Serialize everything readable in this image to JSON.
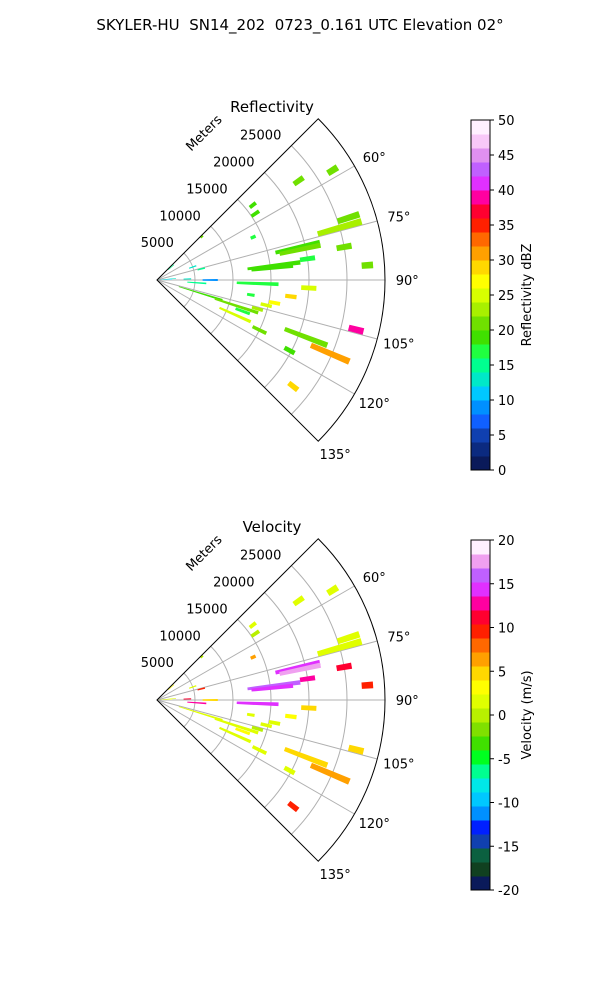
{
  "figure_title": "SKYLER-HU  SN14_202  0723_0.161 UTC Elevation 02°",
  "chart_data": [
    {
      "type": "ppi",
      "title": "Reflectivity",
      "range_label": "Meters",
      "range_ticks": [
        5000,
        10000,
        15000,
        20000,
        25000
      ],
      "range_max": 30000,
      "azimuth_ticks": [
        "60°",
        "75°",
        "90°",
        "105°",
        "120°",
        "135°"
      ],
      "azimuth_range": [
        45,
        135
      ],
      "grid": true,
      "colorbar": {
        "label": "Reflectivity dBZ",
        "min": 0,
        "max": 50,
        "ticks": [
          0,
          5,
          10,
          15,
          20,
          25,
          30,
          35,
          40,
          45,
          50
        ],
        "colors": [
          "#0a1a5a",
          "#0b2a80",
          "#1040b0",
          "#1060ff",
          "#0090ff",
          "#00c8ff",
          "#00e8c8",
          "#00ff90",
          "#20ff40",
          "#40e000",
          "#70e000",
          "#a8f000",
          "#d8ff00",
          "#ffff00",
          "#ffd800",
          "#ffa000",
          "#ff6800",
          "#ff2000",
          "#ff0030",
          "#ff00a0",
          "#e030ff",
          "#c060ff",
          "#e090f0",
          "#f8c8f8",
          "#fff0ff"
        ]
      },
      "echoes": [
        {
          "az": 46,
          "r": [
            8000,
            8400
          ],
          "v": 20
        },
        {
          "az": 48,
          "r": [
            2000,
            3000
          ],
          "v": 14
        },
        {
          "az": 52,
          "r": [
            15500,
            16500
          ],
          "v": 18
        },
        {
          "az": 55,
          "r": [
            22000,
            23500
          ],
          "v": 20
        },
        {
          "az": 56,
          "r": [
            15000,
            16200
          ],
          "v": 18
        },
        {
          "az": 58,
          "r": [
            26500,
            28000
          ],
          "v": 20
        },
        {
          "az": 66,
          "r": [
            13500,
            14200
          ],
          "v": 16
        },
        {
          "az": 70,
          "r": [
            4500,
            5500
          ],
          "v": 12
        },
        {
          "az": 72,
          "r": [
            25000,
            28000
          ],
          "v": 20
        },
        {
          "az": 74,
          "r": [
            22000,
            28000
          ],
          "v": 22
        },
        {
          "az": 76,
          "r": [
            5500,
            6500
          ],
          "v": 14
        },
        {
          "az": 77,
          "r": [
            16000,
            22000
          ],
          "v": 18
        },
        {
          "az": 78,
          "r": [
            16500,
            22000
          ],
          "v": 20
        },
        {
          "az": 80,
          "r": [
            24000,
            26000
          ],
          "v": 20
        },
        {
          "az": 82,
          "r": [
            19000,
            21000
          ],
          "v": 16
        },
        {
          "az": 83,
          "r": [
            12000,
            19000
          ],
          "v": 18
        },
        {
          "az": 84,
          "r": [
            12500,
            18000
          ],
          "v": 19
        },
        {
          "az": 85,
          "r": [
            0,
            2500
          ],
          "v": 12
        },
        {
          "az": 86,
          "r": [
            27000,
            28500
          ],
          "v": 20
        },
        {
          "az": 88,
          "r": [
            3500,
            4500
          ],
          "v": 13
        },
        {
          "az": 89,
          "r": [
            500,
            2000
          ],
          "v": 10
        },
        {
          "az": 90,
          "r": [
            6000,
            8000
          ],
          "v": 8
        },
        {
          "az": 92,
          "r": [
            10500,
            16000
          ],
          "v": 16
        },
        {
          "az": 93,
          "r": [
            19000,
            21000
          ],
          "v": 25
        },
        {
          "az": 94,
          "r": [
            4000,
            6500
          ],
          "v": 15
        },
        {
          "az": 97,
          "r": [
            17000,
            18500
          ],
          "v": 28
        },
        {
          "az": 99,
          "r": [
            12000,
            13000
          ],
          "v": 16
        },
        {
          "az": 101,
          "r": [
            15000,
            16500
          ],
          "v": 27
        },
        {
          "az": 103,
          "r": [
            14000,
            15500
          ],
          "v": 24
        },
        {
          "az": 104,
          "r": [
            26000,
            28000
          ],
          "v": 38
        },
        {
          "az": 106,
          "r": [
            13000,
            14500
          ],
          "v": 22
        },
        {
          "az": 107,
          "r": [
            3000,
            9000
          ],
          "v": 18
        },
        {
          "az": 108,
          "r": [
            8000,
            14000
          ],
          "v": 20
        },
        {
          "az": 110,
          "r": [
            11000,
            13000
          ],
          "v": 16
        },
        {
          "az": 111,
          "r": [
            18000,
            24000
          ],
          "v": 21
        },
        {
          "az": 113,
          "r": [
            22000,
            27500
          ],
          "v": 30
        },
        {
          "az": 114,
          "r": [
            9000,
            13500
          ],
          "v": 24
        },
        {
          "az": 116,
          "r": [
            14000,
            16000
          ],
          "v": 20
        },
        {
          "az": 118,
          "r": [
            19000,
            20500
          ],
          "v": 18
        },
        {
          "az": 128,
          "r": [
            22000,
            23500
          ],
          "v": 28
        }
      ]
    },
    {
      "type": "ppi",
      "title": "Velocity",
      "range_label": "Meters",
      "range_ticks": [
        5000,
        10000,
        15000,
        20000,
        25000
      ],
      "range_max": 30000,
      "azimuth_ticks": [
        "60°",
        "75°",
        "90°",
        "105°",
        "120°",
        "135°"
      ],
      "azimuth_range": [
        45,
        135
      ],
      "grid": true,
      "colorbar": {
        "label": "Velocity (m/s)",
        "min": -20,
        "max": 20,
        "ticks": [
          -20,
          -15,
          -10,
          -5,
          0,
          5,
          10,
          15,
          20
        ],
        "colors": [
          "#0a1a5a",
          "#104020",
          "#0b6040",
          "#1040b0",
          "#0020ff",
          "#0090ff",
          "#00c8ff",
          "#00e8e8",
          "#00ff90",
          "#00ff20",
          "#40e000",
          "#80e000",
          "#b8f000",
          "#e0ff00",
          "#ffff00",
          "#ffd800",
          "#ffa000",
          "#ff6800",
          "#ff2000",
          "#ff0030",
          "#ff00a0",
          "#e030ff",
          "#c060ff",
          "#f0a0f0",
          "#fff0ff"
        ]
      },
      "echoes": [
        {
          "az": 46,
          "r": [
            8000,
            8400
          ],
          "v": 0
        },
        {
          "az": 48,
          "r": [
            2000,
            3000
          ],
          "v": 3
        },
        {
          "az": 52,
          "r": [
            15500,
            16500
          ],
          "v": 2
        },
        {
          "az": 55,
          "r": [
            22000,
            23500
          ],
          "v": 1
        },
        {
          "az": 56,
          "r": [
            15000,
            16200
          ],
          "v": 0
        },
        {
          "az": 58,
          "r": [
            26500,
            28000
          ],
          "v": 1
        },
        {
          "az": 66,
          "r": [
            13500,
            14200
          ],
          "v": 7
        },
        {
          "az": 70,
          "r": [
            4500,
            5500
          ],
          "v": 2
        },
        {
          "az": 72,
          "r": [
            25000,
            28000
          ],
          "v": 2
        },
        {
          "az": 74,
          "r": [
            22000,
            28000
          ],
          "v": 1
        },
        {
          "az": 76,
          "r": [
            5500,
            6500
          ],
          "v": 9
        },
        {
          "az": 77,
          "r": [
            16000,
            22000
          ],
          "v": 14
        },
        {
          "az": 78,
          "r": [
            16500,
            22000
          ],
          "v": 17
        },
        {
          "az": 80,
          "r": [
            24000,
            26000
          ],
          "v": 11
        },
        {
          "az": 82,
          "r": [
            19000,
            21000
          ],
          "v": 12
        },
        {
          "az": 83,
          "r": [
            12000,
            19000
          ],
          "v": 16
        },
        {
          "az": 84,
          "r": [
            12500,
            18000
          ],
          "v": 14
        },
        {
          "az": 85,
          "r": [
            0,
            2500
          ],
          "v": 1
        },
        {
          "az": 86,
          "r": [
            27000,
            28500
          ],
          "v": 10
        },
        {
          "az": 88,
          "r": [
            3500,
            4500
          ],
          "v": 11
        },
        {
          "az": 89,
          "r": [
            500,
            2000
          ],
          "v": 2
        },
        {
          "az": 90,
          "r": [
            6000,
            8000
          ],
          "v": 5
        },
        {
          "az": 92,
          "r": [
            10500,
            16000
          ],
          "v": 15
        },
        {
          "az": 93,
          "r": [
            19000,
            21000
          ],
          "v": 4
        },
        {
          "az": 94,
          "r": [
            4000,
            6500
          ],
          "v": 12
        },
        {
          "az": 97,
          "r": [
            17000,
            18500
          ],
          "v": 3
        },
        {
          "az": 99,
          "r": [
            12000,
            13000
          ],
          "v": 2
        },
        {
          "az": 101,
          "r": [
            15000,
            16500
          ],
          "v": 2
        },
        {
          "az": 103,
          "r": [
            14000,
            15500
          ],
          "v": 1
        },
        {
          "az": 104,
          "r": [
            26000,
            28000
          ],
          "v": 5
        },
        {
          "az": 106,
          "r": [
            13000,
            14500
          ],
          "v": 0
        },
        {
          "az": 107,
          "r": [
            3000,
            9000
          ],
          "v": 1
        },
        {
          "az": 108,
          "r": [
            8000,
            14000
          ],
          "v": 2
        },
        {
          "az": 110,
          "r": [
            11000,
            13000
          ],
          "v": 3
        },
        {
          "az": 111,
          "r": [
            18000,
            24000
          ],
          "v": 4
        },
        {
          "az": 113,
          "r": [
            22000,
            27500
          ],
          "v": 6
        },
        {
          "az": 114,
          "r": [
            9000,
            13500
          ],
          "v": 2
        },
        {
          "az": 116,
          "r": [
            14000,
            16000
          ],
          "v": 1
        },
        {
          "az": 118,
          "r": [
            19000,
            20500
          ],
          "v": 2
        },
        {
          "az": 128,
          "r": [
            22000,
            23500
          ],
          "v": 10
        }
      ]
    }
  ]
}
